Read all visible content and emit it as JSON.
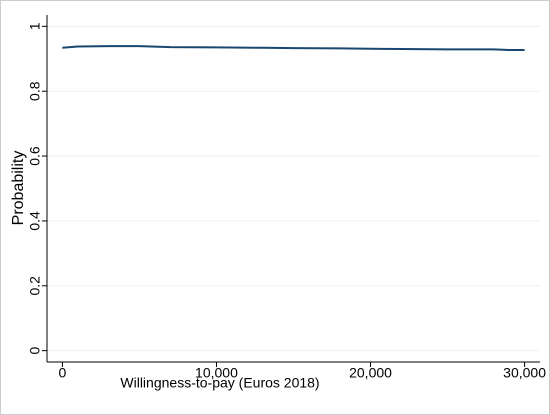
{
  "chart_data": {
    "type": "line",
    "x_label": "Willingness-to-pay (Euros 2018)",
    "y_label": "Probability",
    "x": [
      0,
      1000,
      3000,
      5000,
      7000,
      10000,
      13000,
      15000,
      18000,
      20000,
      22000,
      25000,
      28000,
      29000,
      30000
    ],
    "series": [
      {
        "color": "#1a476f",
        "values": [
          0.934,
          0.938,
          0.939,
          0.939,
          0.936,
          0.935,
          0.934,
          0.933,
          0.932,
          0.931,
          0.93,
          0.929,
          0.929,
          0.927,
          0.927
        ]
      }
    ],
    "xlim": [
      -1000,
      31000
    ],
    "xticks": [
      0,
      {
        "value": 10000,
        "label": "10,000"
      },
      {
        "value": 20000,
        "label": "20,000"
      },
      {
        "value": 30000,
        "label": "30,000"
      }
    ],
    "ylim": [
      -0.035,
      1.035
    ],
    "yticks": [
      0,
      0.2,
      0.4,
      0.6,
      0.8,
      1
    ],
    "grid": true
  }
}
